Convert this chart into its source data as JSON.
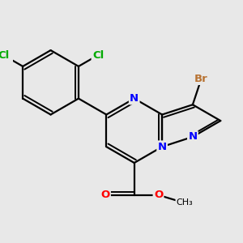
{
  "background_color": "#e8e8e8",
  "bond_color": "#000000",
  "atom_colors": {
    "N": "#0000ff",
    "O": "#ff0000",
    "Br": "#b87333",
    "Cl": "#00aa00",
    "C": "#000000"
  },
  "figsize": [
    3.0,
    3.0
  ],
  "dpi": 100
}
